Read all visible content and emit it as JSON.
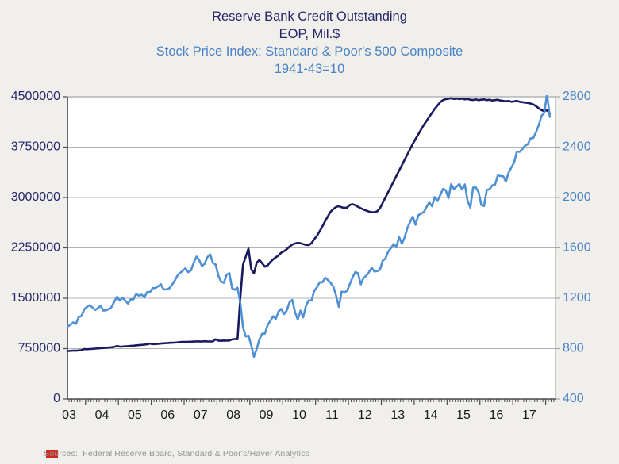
{
  "title": {
    "line1": "Reserve Bank Credit Outstanding",
    "line2": "EOP, Mil.$",
    "line3": "Stock Price Index: Standard & Poor's 500 Composite",
    "line4": "1941-43=10"
  },
  "source_note": "Sources:  Federal Reserve Board, Standard & Poor's/Haver Analytics",
  "colors": {
    "background": "#f0efec",
    "plot_background": "#ffffff",
    "gridline": "#b3b3b3",
    "axis_dark": "#4a4a4a",
    "axis_light": "#a8a8a8",
    "navy_series": "#1a1a5f",
    "blue_series": "#4f90d4",
    "navy_text": "#26266b",
    "blue_text": "#4a82c6",
    "x_label_text": "#1a1a1a",
    "source_text": "#939393",
    "logo_red": "#d2281e"
  },
  "chart_data": {
    "type": "line",
    "title": "Reserve Bank Credit Outstanding EOP, Mil.$ / Stock Price Index: Standard & Poor's 500 Composite 1941-43=10",
    "grid": "horizontal",
    "legend": "none",
    "left_axis": {
      "label": "Reserve Bank Credit Outstanding (EOP, Mil.$)",
      "min": 0,
      "max": 4500000,
      "ticks": [
        0,
        750000,
        1500000,
        2250000,
        3000000,
        3750000,
        4500000
      ]
    },
    "right_axis": {
      "label": "Stock Price Index: Standard & Poor's 500 Composite (1941-43=10)",
      "min": 400,
      "max": 2800,
      "ticks": [
        400,
        800,
        1200,
        1600,
        2000,
        2400,
        2800
      ]
    },
    "x_axis": {
      "domain": [
        2003.45,
        2018.3
      ],
      "label_years_start": 2003,
      "labels": [
        "03",
        "04",
        "05",
        "06",
        "07",
        "08",
        "09",
        "10",
        "11",
        "12",
        "13",
        "14",
        "15",
        "16",
        "17"
      ]
    },
    "series": [
      {
        "name": "Reserve Bank Credit Outstanding (EOP, Mil.$)",
        "axis": "left",
        "color": "#1a1a5f",
        "start_year": 2003,
        "points_per_year": 12,
        "values": [
          700000,
          703000,
          706000,
          708000,
          711000,
          714000,
          717000,
          720000,
          719000,
          723000,
          728000,
          744000,
          741000,
          744000,
          747000,
          750000,
          753000,
          757000,
          760000,
          763000,
          766000,
          770000,
          776000,
          789000,
          779000,
          781000,
          784000,
          787000,
          791000,
          794000,
          799000,
          802000,
          805000,
          809000,
          814000,
          825000,
          817000,
          819000,
          822000,
          825000,
          829000,
          832000,
          835000,
          837000,
          839000,
          842000,
          847000,
          852000,
          850000,
          852000,
          853000,
          855000,
          857000,
          858000,
          855000,
          860000,
          858000,
          856000,
          858000,
          888000,
          869000,
          866000,
          871000,
          868000,
          871000,
          887000,
          893000,
          889000,
          1500000,
          2000000,
          2120000,
          2240000,
          1930000,
          1870000,
          2030000,
          2070000,
          2020000,
          1970000,
          1990000,
          2040000,
          2080000,
          2110000,
          2140000,
          2180000,
          2200000,
          2230000,
          2270000,
          2300000,
          2315000,
          2325000,
          2318000,
          2305000,
          2295000,
          2290000,
          2320000,
          2380000,
          2430000,
          2500000,
          2570000,
          2650000,
          2720000,
          2790000,
          2830000,
          2860000,
          2870000,
          2855000,
          2845000,
          2850000,
          2890000,
          2900000,
          2885000,
          2862000,
          2840000,
          2820000,
          2805000,
          2790000,
          2780000,
          2782000,
          2795000,
          2840000,
          2920000,
          3000000,
          3080000,
          3160000,
          3240000,
          3320000,
          3400000,
          3480000,
          3560000,
          3640000,
          3720000,
          3800000,
          3870000,
          3940000,
          4010000,
          4080000,
          4140000,
          4200000,
          4260000,
          4320000,
          4370000,
          4420000,
          4450000,
          4465000,
          4470000,
          4478000,
          4468000,
          4474000,
          4466000,
          4472000,
          4462000,
          4468000,
          4456000,
          4452000,
          4462000,
          4450000,
          4456000,
          4462000,
          4450000,
          4456000,
          4444000,
          4450000,
          4456000,
          4444000,
          4438000,
          4432000,
          4438000,
          4426000,
          4432000,
          4438000,
          4426000,
          4420000,
          4414000,
          4408000,
          4400000,
          4385000,
          4360000,
          4330000,
          4300000,
          4285000,
          4300000,
          4250000
        ]
      },
      {
        "name": "S&P 500 Composite Stock Price Index (1941-43=10)",
        "axis": "right",
        "color": "#4f90d4",
        "start_year": 2003,
        "points_per_year": 12,
        "values": [
          855,
          841,
          848,
          917,
          964,
          975,
          990,
          1008,
          996,
          1051,
          1058,
          1112,
          1131,
          1145,
          1126,
          1107,
          1121,
          1141,
          1102,
          1104,
          1115,
          1130,
          1174,
          1212,
          1181,
          1204,
          1181,
          1157,
          1192,
          1191,
          1234,
          1220,
          1229,
          1207,
          1249,
          1248,
          1280,
          1281,
          1295,
          1311,
          1270,
          1270,
          1277,
          1304,
          1336,
          1378,
          1401,
          1418,
          1438,
          1407,
          1421,
          1482,
          1531,
          1503,
          1455,
          1474,
          1527,
          1549,
          1481,
          1468,
          1379,
          1331,
          1323,
          1386,
          1400,
          1280,
          1267,
          1283,
          1166,
          969,
          896,
          903,
          826,
          735,
          798,
          873,
          919,
          919,
          987,
          1021,
          1057,
          1036,
          1096,
          1115,
          1074,
          1104,
          1169,
          1187,
          1089,
          1031,
          1102,
          1049,
          1141,
          1183,
          1181,
          1258,
          1286,
          1327,
          1326,
          1364,
          1345,
          1321,
          1292,
          1219,
          1131,
          1253,
          1247,
          1258,
          1312,
          1366,
          1408,
          1398,
          1310,
          1362,
          1379,
          1407,
          1441,
          1412,
          1416,
          1426,
          1498,
          1515,
          1569,
          1598,
          1631,
          1606,
          1686,
          1633,
          1682,
          1757,
          1806,
          1848,
          1783,
          1859,
          1872,
          1884,
          1924,
          1960,
          1931,
          2003,
          1972,
          2018,
          2068,
          2059,
          1995,
          2105,
          2068,
          2086,
          2107,
          2063,
          2104,
          1972,
          1920,
          2079,
          2080,
          2044,
          1940,
          1932,
          2060,
          2065,
          2097,
          2099,
          2174,
          2171,
          2168,
          2126,
          2199,
          2239,
          2279,
          2364,
          2363,
          2384,
          2412,
          2423,
          2470,
          2472,
          2519,
          2575,
          2648,
          2674,
          2824,
          2640
        ]
      }
    ]
  }
}
